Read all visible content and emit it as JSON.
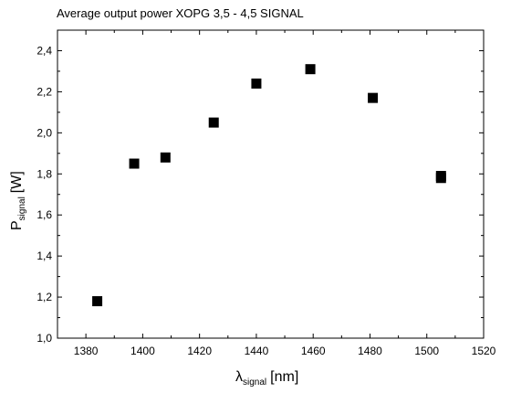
{
  "chart_data": {
    "type": "scatter",
    "title": "Average output power XOPG 3,5 - 4,5 SIGNAL",
    "xlabel": {
      "main": "λ",
      "sub": "signal",
      "unit": "[nm]"
    },
    "ylabel": {
      "main": "P",
      "sub": "signal",
      "unit": "[W]"
    },
    "xlim": [
      1370,
      1520
    ],
    "ylim": [
      1.0,
      2.5
    ],
    "x_ticks": [
      1380,
      1400,
      1420,
      1440,
      1460,
      1480,
      1500,
      1520
    ],
    "x_tick_labels": [
      "1380",
      "1400",
      "1420",
      "1440",
      "1460",
      "1480",
      "1500",
      "1520"
    ],
    "y_ticks": [
      1.0,
      1.2,
      1.4,
      1.6,
      1.8,
      2.0,
      2.2,
      2.4
    ],
    "y_tick_labels": [
      "1,0",
      "1,2",
      "1,4",
      "1,6",
      "1,8",
      "2,0",
      "2,2",
      "2,4"
    ],
    "grid": false,
    "marker": "square",
    "marker_color": "#000000",
    "series": [
      {
        "x": [
          1384,
          1397,
          1408,
          1425,
          1440,
          1459,
          1481,
          1505,
          1505
        ],
        "y": [
          1.18,
          1.85,
          1.88,
          2.05,
          2.24,
          2.31,
          2.17,
          1.79,
          1.78
        ]
      }
    ]
  }
}
